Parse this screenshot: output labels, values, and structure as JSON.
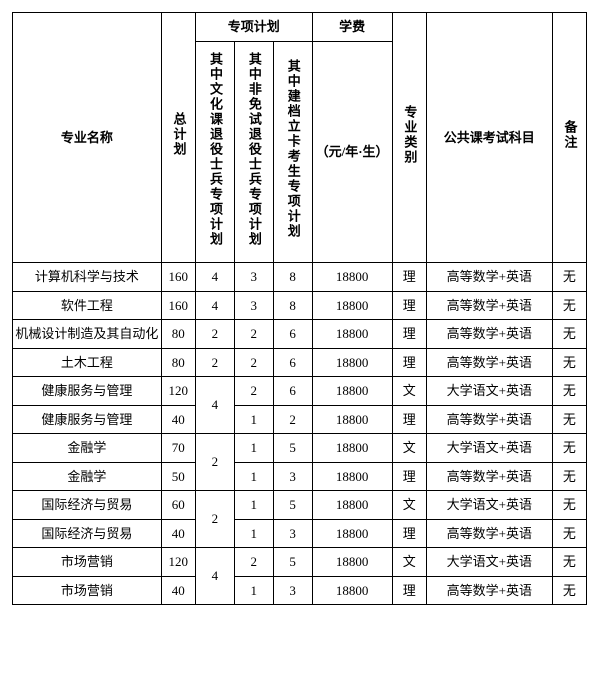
{
  "headers": {
    "name": "专业名称",
    "total": "总计划",
    "special_group": "专项计划",
    "sub1": "其中文化课退役士兵专项计划",
    "sub2": "其中非免试退役士兵专项计划",
    "sub3": "其中建档立卡考生专项计划",
    "fee_group": "学费",
    "fee_unit": "（元/年·生）",
    "category": "专业类别",
    "exam": "公共课考试科目",
    "note": "备注"
  },
  "merged_totals": [
    "4",
    "2",
    "2",
    "4"
  ],
  "rows": [
    {
      "name": "计算机科学与技术",
      "total": "160",
      "s1": "4",
      "s2": "3",
      "s3": "8",
      "fee": "18800",
      "cat": "理",
      "exam": "高等数学+英语",
      "note": "无",
      "merge_s1": false
    },
    {
      "name": "软件工程",
      "total": "160",
      "s1": "4",
      "s2": "3",
      "s3": "8",
      "fee": "18800",
      "cat": "理",
      "exam": "高等数学+英语",
      "note": "无",
      "merge_s1": false
    },
    {
      "name": "机械设计制造及其自动化",
      "total": "80",
      "s1": "2",
      "s2": "2",
      "s3": "6",
      "fee": "18800",
      "cat": "理",
      "exam": "高等数学+英语",
      "note": "无",
      "merge_s1": false
    },
    {
      "name": "土木工程",
      "total": "80",
      "s1": "2",
      "s2": "2",
      "s3": "6",
      "fee": "18800",
      "cat": "理",
      "exam": "高等数学+英语",
      "note": "无",
      "merge_s1": false
    },
    {
      "name": "健康服务与管理",
      "total": "120",
      "s2": "2",
      "s3": "6",
      "fee": "18800",
      "cat": "文",
      "exam": "大学语文+英语",
      "note": "无",
      "merge_s1": true,
      "merge_val_idx": 0
    },
    {
      "name": "健康服务与管理",
      "total": "40",
      "s2": "1",
      "s3": "2",
      "fee": "18800",
      "cat": "理",
      "exam": "高等数学+英语",
      "note": "无",
      "merge_s1": false,
      "skip_s1": true
    },
    {
      "name": "金融学",
      "total": "70",
      "s2": "1",
      "s3": "5",
      "fee": "18800",
      "cat": "文",
      "exam": "大学语文+英语",
      "note": "无",
      "merge_s1": true,
      "merge_val_idx": 1
    },
    {
      "name": "金融学",
      "total": "50",
      "s2": "1",
      "s3": "3",
      "fee": "18800",
      "cat": "理",
      "exam": "高等数学+英语",
      "note": "无",
      "merge_s1": false,
      "skip_s1": true
    },
    {
      "name": "国际经济与贸易",
      "total": "60",
      "s2": "1",
      "s3": "5",
      "fee": "18800",
      "cat": "文",
      "exam": "大学语文+英语",
      "note": "无",
      "merge_s1": true,
      "merge_val_idx": 2
    },
    {
      "name": "国际经济与贸易",
      "total": "40",
      "s2": "1",
      "s3": "3",
      "fee": "18800",
      "cat": "理",
      "exam": "高等数学+英语",
      "note": "无",
      "merge_s1": false,
      "skip_s1": true
    },
    {
      "name": "市场营销",
      "total": "120",
      "s2": "2",
      "s3": "5",
      "fee": "18800",
      "cat": "文",
      "exam": "大学语文+英语",
      "note": "无",
      "merge_s1": true,
      "merge_val_idx": 3
    },
    {
      "name": "市场营销",
      "total": "40",
      "s2": "1",
      "s3": "3",
      "fee": "18800",
      "cat": "理",
      "exam": "高等数学+英语",
      "note": "无",
      "merge_s1": false,
      "skip_s1": true
    }
  ],
  "style": {
    "font_family": "SimSun",
    "font_size_pt": 10,
    "border_color": "#000000",
    "background_color": "#ffffff",
    "text_color": "#000000"
  }
}
